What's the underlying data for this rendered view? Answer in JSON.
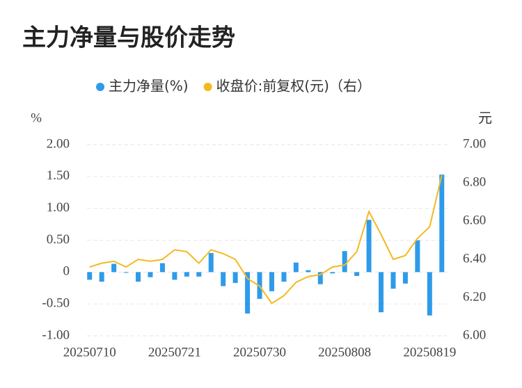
{
  "chart_data": {
    "type": "bar+line",
    "title": "主力净量与股价走势",
    "y_label": "%",
    "y2_label": "元",
    "categories": [
      "20250710",
      null,
      null,
      null,
      null,
      null,
      null,
      "20250721",
      null,
      null,
      null,
      null,
      null,
      null,
      "20250730",
      null,
      null,
      null,
      null,
      null,
      null,
      "20250808",
      null,
      null,
      null,
      null,
      null,
      null,
      "20250819",
      null
    ],
    "series": [
      {
        "name": "主力净量(%)",
        "type": "bar",
        "color": "#2e9bea",
        "values": [
          -0.12,
          -0.15,
          0.13,
          -0.01,
          -0.15,
          -0.08,
          0.14,
          -0.12,
          -0.07,
          -0.07,
          0.3,
          -0.22,
          -0.17,
          -0.65,
          -0.42,
          -0.3,
          -0.15,
          0.15,
          0.03,
          -0.19,
          -0.02,
          0.33,
          -0.06,
          0.82,
          -0.63,
          -0.26,
          -0.18,
          0.5,
          -0.68,
          1.53
        ]
      },
      {
        "name": "收盘价:前复权(元)（右）",
        "type": "line",
        "axis": "y2",
        "color": "#f5b920",
        "values": [
          6.36,
          6.38,
          6.39,
          6.36,
          6.4,
          6.39,
          6.4,
          6.45,
          6.44,
          6.38,
          6.45,
          6.43,
          6.4,
          6.3,
          6.26,
          6.17,
          6.21,
          6.28,
          6.31,
          6.32,
          6.36,
          6.37,
          6.44,
          6.65,
          6.53,
          6.4,
          6.42,
          6.51,
          6.57,
          6.84
        ]
      }
    ],
    "ylim": [
      -1,
      2
    ],
    "yticks": [
      {
        "value": -1,
        "label": "-1.00"
      },
      {
        "value": -0.5,
        "label": "-0.50"
      },
      0,
      {
        "value": 0.5,
        "label": "0.50"
      },
      {
        "value": 1,
        "label": "1.00"
      },
      {
        "value": 1.5,
        "label": "1.50"
      },
      {
        "value": 2,
        "label": "2.00"
      }
    ],
    "y2lim": [
      6,
      7
    ],
    "y2ticks": [
      {
        "value": 6,
        "label": "6.00"
      },
      {
        "value": 6.2,
        "label": "6.20"
      },
      {
        "value": 6.4,
        "label": "6.40"
      },
      {
        "value": 6.6,
        "label": "6.60"
      },
      {
        "value": 6.8,
        "label": "6.80"
      },
      {
        "value": 7,
        "label": "7.00"
      }
    ],
    "grid": true,
    "legend": "top"
  }
}
